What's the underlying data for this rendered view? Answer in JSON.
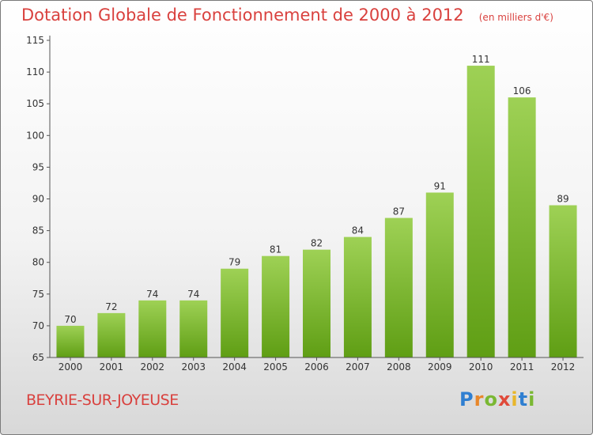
{
  "header": {
    "title": "Dotation Globale de Fonctionnement de 2000 à 2012",
    "unit": "(en milliers d'€)"
  },
  "footer": {
    "town": "BEYRIE-SUR-JOYEUSE",
    "logo": "Proxiti"
  },
  "colors": {
    "title": "#d9413e",
    "bar_top": "#9ed155",
    "bar_bottom": "#5f9e14",
    "axis": "#555555"
  },
  "chart_data": {
    "type": "bar",
    "title": "Dotation Globale de Fonctionnement de 2000 à 2012",
    "subtitle": "(en milliers d'€)",
    "xlabel": "",
    "ylabel": "",
    "categories": [
      "2000",
      "2001",
      "2002",
      "2003",
      "2004",
      "2005",
      "2006",
      "2007",
      "2008",
      "2009",
      "2010",
      "2011",
      "2012"
    ],
    "values": [
      70,
      72,
      74,
      74,
      79,
      81,
      82,
      84,
      87,
      91,
      111,
      106,
      89
    ],
    "ylim": [
      65,
      115
    ],
    "yticks": [
      65,
      70,
      75,
      80,
      85,
      90,
      95,
      100,
      105,
      110,
      115
    ],
    "grid": false,
    "legend": "none"
  }
}
